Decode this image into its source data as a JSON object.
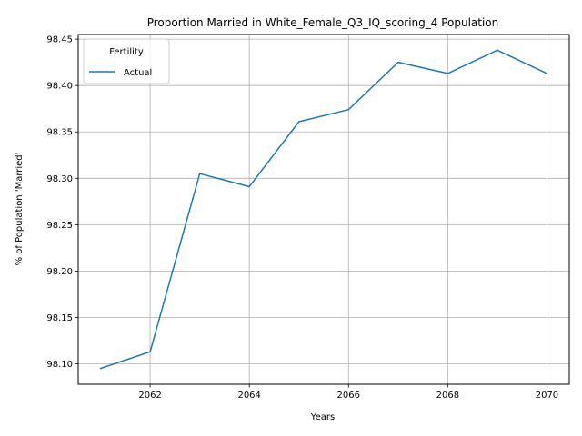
{
  "chart_data": {
    "type": "line",
    "title": "Proportion Married in White_Female_Q3_IQ_scoring_4 Population",
    "xlabel": "Years",
    "ylabel": "% of Population 'Married'",
    "xlim": [
      2060.55,
      2070.45
    ],
    "ylim": [
      98.078,
      98.455
    ],
    "xticks": [
      2062,
      2064,
      2066,
      2068,
      2070
    ],
    "xtick_labels": [
      "2062",
      "2064",
      "2066",
      "2068",
      "2070"
    ],
    "yticks": [
      98.1,
      98.15,
      98.2,
      98.25,
      98.3,
      98.35,
      98.4,
      98.45
    ],
    "ytick_labels": [
      "98.10",
      "98.15",
      "98.20",
      "98.25",
      "98.30",
      "98.35",
      "98.40",
      "98.45"
    ],
    "grid": true,
    "legend": {
      "title": "Fertility",
      "placement": "upper-left"
    },
    "series": [
      {
        "name": "Actual",
        "color": "#1f77b4",
        "x": [
          2061,
          2062,
          2063,
          2064,
          2065,
          2066,
          2067,
          2068,
          2069,
          2070
        ],
        "y": [
          98.095,
          98.113,
          98.305,
          98.291,
          98.361,
          98.374,
          98.425,
          98.413,
          98.438,
          98.413
        ]
      }
    ]
  }
}
